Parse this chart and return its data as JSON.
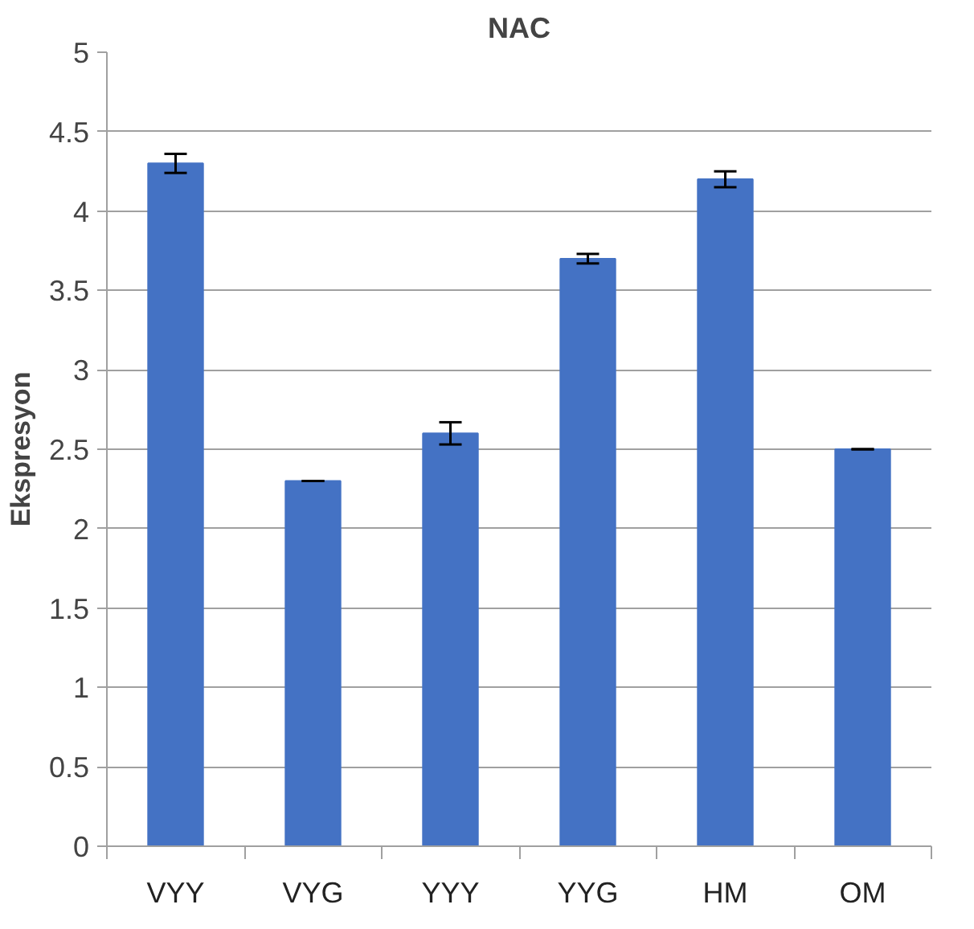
{
  "chart_data": {
    "type": "bar",
    "title": "NAC",
    "ylabel": "Ekspresyon",
    "categories": [
      "VYY",
      "VYG",
      "YYY",
      "YYG",
      "HM",
      "OM"
    ],
    "values": [
      4.3,
      2.3,
      2.6,
      3.7,
      4.2,
      2.5
    ],
    "errors": [
      0.06,
      0,
      0.07,
      0.03,
      0.05,
      0
    ],
    "color": "#4472c4",
    "ylim": [
      0,
      5
    ],
    "yticks": [
      0,
      0.5,
      1,
      1.5,
      2,
      2.5,
      3,
      3.5,
      4,
      4.5,
      5
    ],
    "grid": "y"
  }
}
